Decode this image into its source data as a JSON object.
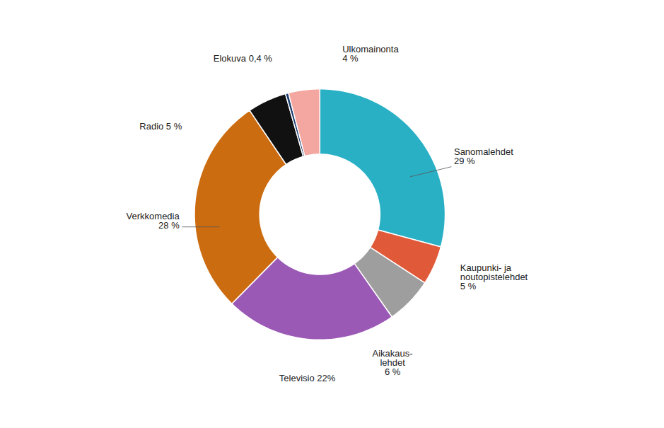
{
  "chart_data": {
    "type": "pie",
    "categories": [
      "Sanomalehdet\n29 %",
      "Kaupunki- ja\nnoutopistelehdet\n5 %",
      "Aikakaus-\nlehdet\n6 %",
      "Televisio 22%",
      "Verkkomedia\n28 %",
      "Radio 5 %",
      "Elokuva 0,4 %",
      "Ulkomainonta\n4 %"
    ],
    "values": [
      29,
      5,
      6,
      22,
      28,
      5,
      0.4,
      4
    ],
    "colors": [
      "#2ab0c5",
      "#e05a3a",
      "#9e9e9e",
      "#9b59b6",
      "#cc6c10",
      "#111111",
      "#1a3a6e",
      "#f4a6a0"
    ]
  }
}
